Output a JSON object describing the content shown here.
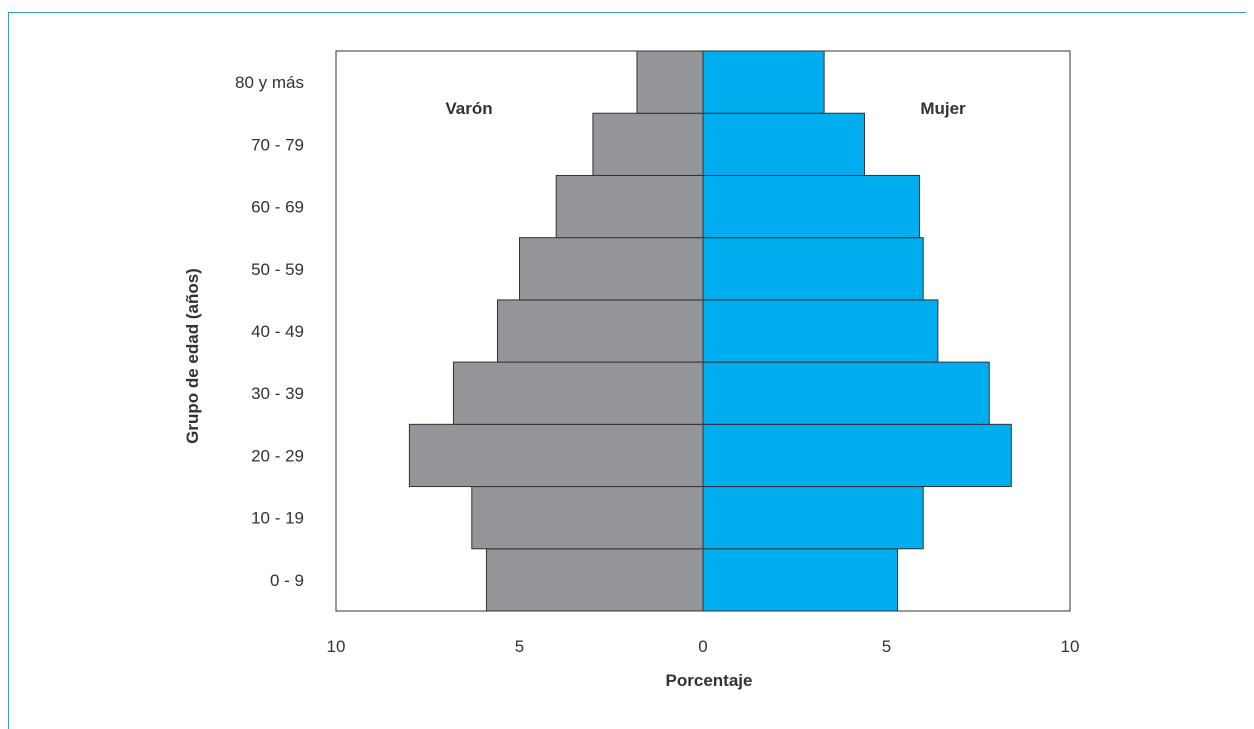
{
  "chart_data": {
    "type": "bar",
    "orientation": "horizontal-population-pyramid",
    "categories": [
      "0 - 9",
      "10 - 19",
      "20 - 29",
      "30 - 39",
      "40 - 49",
      "50 - 59",
      "60 - 69",
      "70 - 79",
      "80 y más"
    ],
    "series": [
      {
        "name": "Varón",
        "side": "left",
        "color": "#939598",
        "values": [
          5.9,
          6.3,
          8.0,
          6.8,
          5.6,
          5.0,
          4.0,
          3.0,
          1.8
        ]
      },
      {
        "name": "Mujer",
        "side": "right",
        "color": "#00aeef",
        "values": [
          5.3,
          6.0,
          8.4,
          7.8,
          6.4,
          6.0,
          5.9,
          4.4,
          3.3
        ]
      }
    ],
    "xlabel": "Porcentaje",
    "ylabel": "Grupo de edad (años)",
    "xlim": [
      -10,
      10
    ],
    "xticks": [
      -10,
      -5,
      0,
      5,
      10
    ],
    "xtick_labels": [
      "10",
      "5",
      "0",
      "5",
      "10"
    ],
    "grid": false
  }
}
